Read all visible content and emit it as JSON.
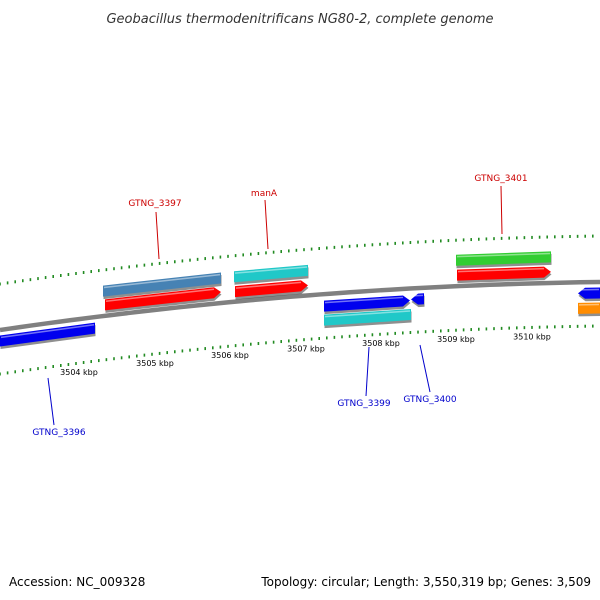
{
  "title": "Geobacillus thermodenitrificans NG80-2, complete genome",
  "footer": {
    "accession": "Accession: NC_009328",
    "summary": "Topology: circular; Length: 3,550,319 bp; Genes: 3,509"
  },
  "colors": {
    "backbone": "#808080",
    "major_tick": "#228B22",
    "minor_tick": "#228B22",
    "label_forward": "#CC0000",
    "label_reverse": "#0000CC",
    "steelblue": "#4682B4",
    "red": "#FF0000",
    "cyan": "#20C8C8",
    "green": "#32CD32",
    "blue": "#0000EE",
    "orange": "#FF8C00"
  },
  "axis": {
    "unit": "kbp",
    "tick_labels": [
      "3504 kbp",
      "3505 kbp",
      "3506 kbp",
      "3507 kbp",
      "3508 kbp",
      "3509 kbp",
      "3510 kbp"
    ]
  },
  "genes": [
    {
      "label": "GTNG_3397",
      "strand": "forward"
    },
    {
      "label": "manA",
      "strand": "forward"
    },
    {
      "label": "GTNG_3401",
      "strand": "forward"
    },
    {
      "label": "GTNG_3396",
      "strand": "reverse"
    },
    {
      "label": "GTNG_3399",
      "strand": "reverse"
    },
    {
      "label": "GTNG_3400",
      "strand": "reverse"
    }
  ]
}
